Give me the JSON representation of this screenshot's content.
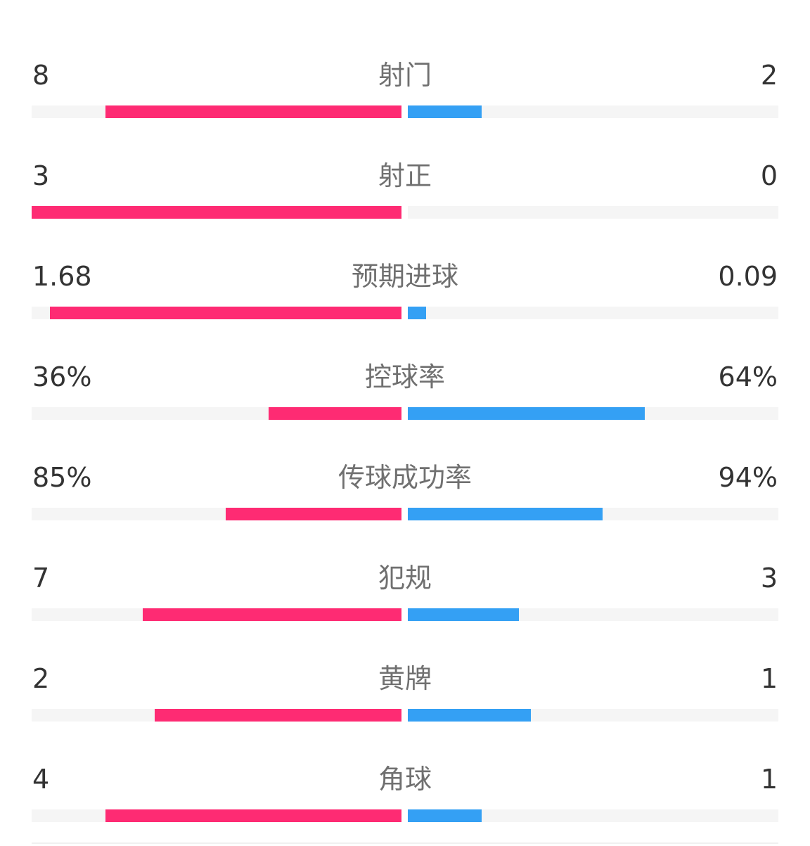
{
  "colors": {
    "home": "#fe2b73",
    "away": "#34a0f4",
    "track": "#f5f5f5"
  },
  "stats": [
    {
      "label": "射门",
      "home": "8",
      "away": "2",
      "home_fraction": 0.8,
      "away_fraction": 0.2
    },
    {
      "label": "射正",
      "home": "3",
      "away": "0",
      "home_fraction": 1.0,
      "away_fraction": 0.0
    },
    {
      "label": "预期进球",
      "home": "1.68",
      "away": "0.09",
      "home_fraction": 0.95,
      "away_fraction": 0.05
    },
    {
      "label": "控球率",
      "home": "36%",
      "away": "64%",
      "home_fraction": 0.36,
      "away_fraction": 0.64
    },
    {
      "label": "传球成功率",
      "home": "85%",
      "away": "94%",
      "home_fraction": 0.475,
      "away_fraction": 0.525
    },
    {
      "label": "犯规",
      "home": "7",
      "away": "3",
      "home_fraction": 0.7,
      "away_fraction": 0.3
    },
    {
      "label": "黄牌",
      "home": "2",
      "away": "1",
      "home_fraction": 0.667,
      "away_fraction": 0.333
    },
    {
      "label": "角球",
      "home": "4",
      "away": "1",
      "home_fraction": 0.8,
      "away_fraction": 0.2
    }
  ]
}
